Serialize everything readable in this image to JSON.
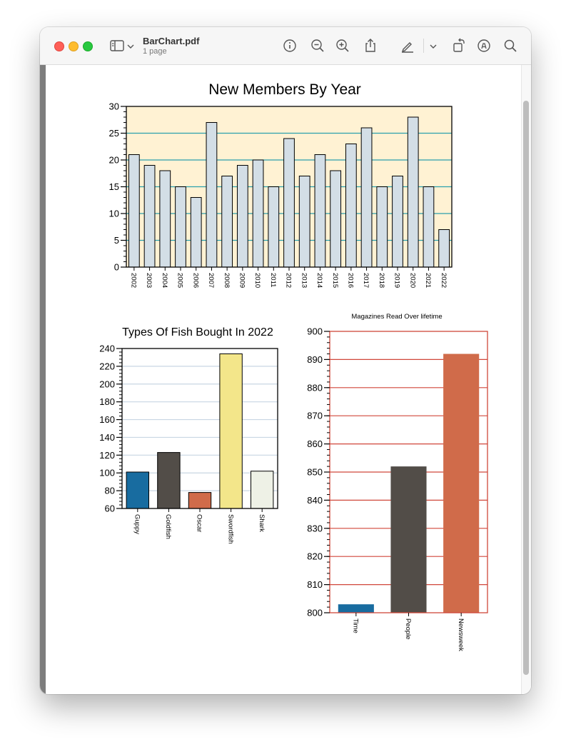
{
  "window": {
    "title": "BarChart.pdf",
    "subtitle": "1 page",
    "toolbar_icons": [
      "sidebar-icon",
      "chevron-down-icon",
      "info-icon",
      "zoom-out-icon",
      "zoom-in-icon",
      "share-icon",
      "highlight-pen-icon",
      "chevron-down-icon",
      "rotate-icon",
      "markup-icon",
      "search-icon"
    ]
  },
  "chart_data": [
    {
      "type": "bar",
      "title": "New Members By Year",
      "categories": [
        "2002",
        "2003",
        "2004",
        "2005",
        "2006",
        "2007",
        "2008",
        "2009",
        "2010",
        "2011",
        "2012",
        "2013",
        "2014",
        "2015",
        "2016",
        "2017",
        "2018",
        "2019",
        "2020",
        "2021",
        "2022"
      ],
      "values": [
        21,
        19,
        18,
        15,
        13,
        27,
        17,
        19,
        20,
        15,
        24,
        17,
        21,
        18,
        23,
        26,
        15,
        17,
        28,
        15,
        7
      ],
      "ylim": [
        0,
        30
      ],
      "yticks": [
        "0",
        "5",
        "10",
        "15",
        "20",
        "25",
        "30"
      ],
      "grid": true,
      "colors": {
        "bar": "#d3dee6",
        "background": "#fff2d3",
        "grid": "#2aa0ad"
      }
    },
    {
      "type": "bar",
      "title": "Types Of Fish Bought In 2022",
      "categories": [
        "Guppy",
        "Goldfish",
        "Oscar",
        "Swordfish",
        "Shark"
      ],
      "values": [
        101,
        123,
        78,
        234,
        102
      ],
      "ylim": [
        60,
        240
      ],
      "yticks": [
        "60",
        "80",
        "100",
        "120",
        "140",
        "160",
        "180",
        "200",
        "220",
        "240"
      ],
      "grid": true,
      "colors": {
        "bars": [
          "#186ca0",
          "#524d48",
          "#d06b4a",
          "#f3e68a",
          "#eef1e6"
        ],
        "grid": "#c8d6e3"
      }
    },
    {
      "type": "bar",
      "title": "Magazines Read Over lifetime",
      "categories": [
        "Time",
        "People",
        "Newsweek"
      ],
      "values": [
        803,
        852,
        892
      ],
      "ylim": [
        800,
        900
      ],
      "yticks": [
        "800",
        "810",
        "820",
        "830",
        "840",
        "850",
        "860",
        "870",
        "880",
        "890",
        "900"
      ],
      "grid": true,
      "colors": {
        "bars": [
          "#186ca0",
          "#524d48",
          "#d06b4a"
        ],
        "grid": "#d0473a"
      }
    }
  ]
}
